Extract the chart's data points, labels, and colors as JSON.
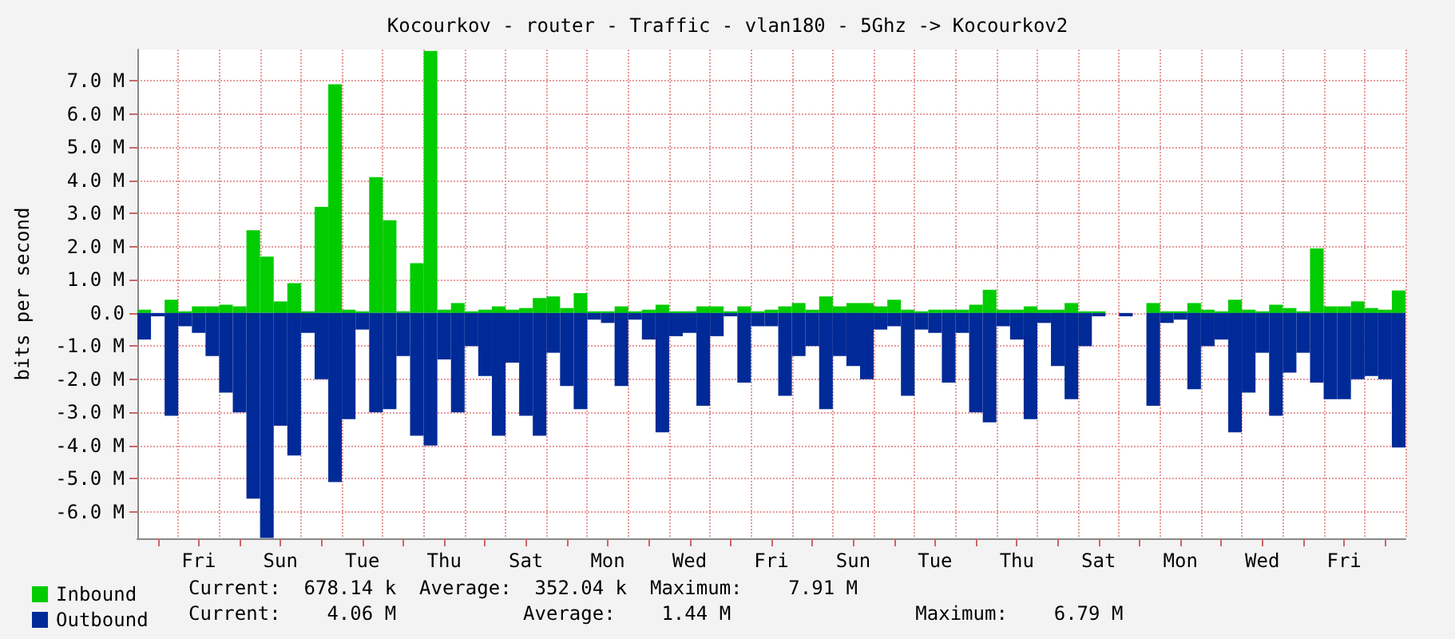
{
  "chart_data": {
    "type": "bar",
    "title": "Kocourkov - router - Traffic - vlan180 - 5Ghz -> Kocourkov2",
    "ylabel": "bits per second",
    "categories": [
      null,
      null,
      null,
      null,
      "Fri",
      null,
      null,
      null,
      null,
      null,
      "Sun",
      null,
      null,
      null,
      null,
      null,
      "Tue",
      null,
      null,
      null,
      null,
      null,
      "Thu",
      null,
      null,
      null,
      null,
      null,
      "Sat",
      null,
      null,
      null,
      null,
      null,
      "Mon",
      null,
      null,
      null,
      null,
      null,
      "Wed",
      null,
      null,
      null,
      null,
      null,
      "Fri",
      null,
      null,
      null,
      null,
      null,
      "Sun",
      null,
      null,
      null,
      null,
      null,
      "Tue",
      null,
      null,
      null,
      null,
      null,
      "Thu",
      null,
      null,
      null,
      null,
      null,
      "Sat",
      null,
      null,
      null,
      null,
      null,
      "Mon",
      null,
      null,
      null,
      null,
      null,
      "Wed",
      null,
      null,
      null,
      null,
      null,
      "Fri",
      null,
      null,
      null,
      null
    ],
    "series": [
      {
        "name": "Inbound",
        "color": "#00cc00",
        "values": [
          0.1,
          0,
          0.4,
          0.05,
          0.2,
          0.2,
          0.25,
          0.2,
          2.5,
          1.7,
          0.35,
          0.9,
          0.05,
          3.2,
          6.9,
          0.1,
          0.05,
          4.1,
          2.8,
          0.05,
          1.5,
          7.91,
          0.1,
          0.3,
          0.05,
          0.1,
          0.2,
          0.1,
          0.15,
          0.45,
          0.5,
          0.15,
          0.6,
          0.05,
          0.05,
          0.2,
          0.05,
          0.1,
          0.25,
          0.05,
          0.05,
          0.2,
          0.2,
          0.05,
          0.2,
          0.05,
          0.1,
          0.2,
          0.3,
          0.1,
          0.5,
          0.2,
          0.3,
          0.3,
          0.2,
          0.4,
          0.1,
          0.05,
          0.1,
          0.1,
          0.1,
          0.25,
          0.7,
          0.1,
          0.1,
          0.2,
          0.1,
          0.1,
          0.3,
          0.05,
          0.05,
          0,
          0,
          0,
          0.3,
          0.05,
          0.05,
          0.3,
          0.1,
          0.05,
          0.4,
          0.1,
          0.05,
          0.25,
          0.15,
          0.05,
          1.95,
          0.2,
          0.2,
          0.35,
          0.15,
          0.1,
          0.68
        ]
      },
      {
        "name": "Outbound",
        "color": "#002a97",
        "values": [
          -0.8,
          -0.1,
          -3.1,
          -0.4,
          -0.6,
          -1.3,
          -2.4,
          -3.0,
          -5.6,
          -6.79,
          -3.4,
          -4.3,
          -0.6,
          -2.0,
          -5.1,
          -3.2,
          -0.5,
          -3.0,
          -2.9,
          -1.3,
          -3.7,
          -4.0,
          -1.4,
          -3.0,
          -1.0,
          -1.9,
          -3.7,
          -1.5,
          -3.1,
          -3.7,
          -1.2,
          -2.2,
          -2.9,
          -0.2,
          -0.3,
          -2.2,
          -0.2,
          -0.8,
          -3.6,
          -0.7,
          -0.6,
          -2.8,
          -0.7,
          -0.1,
          -2.1,
          -0.4,
          -0.4,
          -2.5,
          -1.3,
          -1.0,
          -2.9,
          -1.3,
          -1.6,
          -2.0,
          -0.5,
          -0.4,
          -2.5,
          -0.5,
          -0.6,
          -2.1,
          -0.6,
          -3.0,
          -3.3,
          -0.4,
          -0.8,
          -3.2,
          -0.3,
          -1.6,
          -2.6,
          -1.0,
          -0.1,
          0,
          -0.1,
          0,
          -2.8,
          -0.3,
          -0.2,
          -2.3,
          -1.0,
          -0.8,
          -3.6,
          -2.4,
          -1.2,
          -3.1,
          -1.8,
          -1.2,
          -2.1,
          -2.6,
          -2.6,
          -2.0,
          -1.9,
          -2.0,
          -4.06
        ]
      }
    ],
    "ylim": [
      -6.8,
      7.95
    ],
    "yticks": [
      {
        "value": -6,
        "label": "-6.0 M"
      },
      {
        "value": -5,
        "label": "-5.0 M"
      },
      {
        "value": -4,
        "label": "-4.0 M"
      },
      {
        "value": -3,
        "label": "-3.0 M"
      },
      {
        "value": -2,
        "label": "-2.0 M"
      },
      {
        "value": -1,
        "label": "-1.0 M"
      },
      {
        "value": 0,
        "label": "0.0"
      },
      {
        "value": 1,
        "label": "1.0 M"
      },
      {
        "value": 2,
        "label": "2.0 M"
      },
      {
        "value": 3,
        "label": "3.0 M"
      },
      {
        "value": 4,
        "label": "4.0 M"
      },
      {
        "value": 5,
        "label": "5.0 M"
      },
      {
        "value": 6,
        "label": "6.0 M"
      },
      {
        "value": 7,
        "label": "7.0 M"
      }
    ],
    "grid": true,
    "stacked": true,
    "legend": "bottom left",
    "annotations": [
      "Current:  678.14 k  Average:  352.04 k  Maximum:    7.91 M",
      "Current:    4.06 M           Average:    1.44 M                Maximum:    6.79 M"
    ]
  }
}
